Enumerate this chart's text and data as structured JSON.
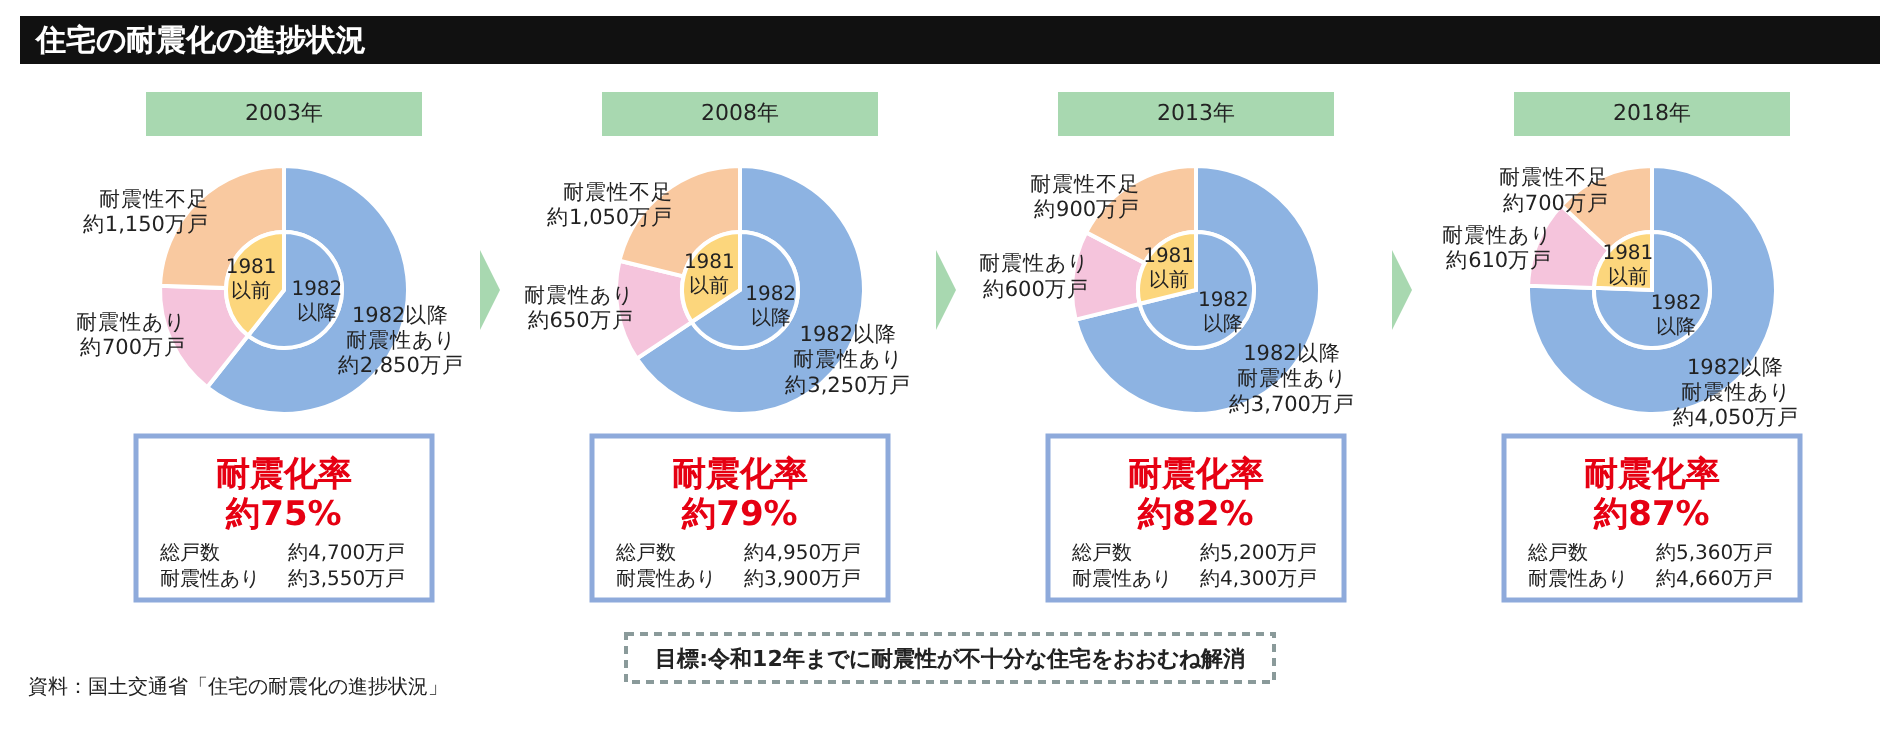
{
  "chart_data": [
    {
      "type": "other",
      "title": "住宅の耐震化の進捗状況",
      "annotations": [
        "資料：国土交通省「住宅の耐震化の進捗状況」",
        "目標:令和12年までに耐震性が不十分な住宅をおおむね解消"
      ]
    },
    {
      "type": "donut",
      "title": "2003年",
      "categories": [
        "1982以降耐震性あり",
        "耐震性あり",
        "耐震性不足"
      ],
      "values": [
        2850,
        700,
        1150
      ],
      "value_labels": [
        "約2,850万戸",
        "約700万戸",
        "約1,150万戸"
      ],
      "colors": [
        "#8db3e2",
        "#f5c4dc",
        "#f9c9a0"
      ],
      "annotations": [
        "耐震化率",
        "約75%",
        "総戸数",
        "約4,700万戸",
        "耐震性あり",
        "約3,550万戸"
      ]
    },
    {
      "type": "pie",
      "categories": [
        "1982以降",
        "1981以前"
      ],
      "values": [
        60.6,
        39.4
      ],
      "colors": [
        "#8db3e2",
        "#fcd67c"
      ]
    },
    {
      "type": "donut",
      "title": "2008年",
      "categories": [
        "1982以降耐震性あり",
        "耐震性あり",
        "耐震性不足"
      ],
      "values": [
        3250,
        650,
        1050
      ],
      "value_labels": [
        "約3,250万戸",
        "約650万戸",
        "約1,050万戸"
      ],
      "colors": [
        "#8db3e2",
        "#f5c4dc",
        "#f9c9a0"
      ],
      "annotations": [
        "耐震化率",
        "約79%",
        "総戸数",
        "約4,950万戸",
        "耐震性あり",
        "約3,900万戸"
      ]
    },
    {
      "type": "pie",
      "categories": [
        "1982以降",
        "1981以前"
      ],
      "values": [
        65.7,
        34.3
      ],
      "colors": [
        "#8db3e2",
        "#fcd67c"
      ]
    },
    {
      "type": "donut",
      "title": "2013年",
      "categories": [
        "1982以降耐震性あり",
        "耐震性あり",
        "耐震性不足"
      ],
      "values": [
        3700,
        600,
        900
      ],
      "value_labels": [
        "約3,700万戸",
        "約600万戸",
        "約900万戸"
      ],
      "colors": [
        "#8db3e2",
        "#f5c4dc",
        "#f9c9a0"
      ],
      "annotations": [
        "耐震化率",
        "約82%",
        "総戸数",
        "約5,200万戸",
        "耐震性あり",
        "約4,300万戸"
      ]
    },
    {
      "type": "pie",
      "categories": [
        "1982以降",
        "1981以前"
      ],
      "values": [
        71.2,
        28.8
      ],
      "colors": [
        "#8db3e2",
        "#fcd67c"
      ]
    },
    {
      "type": "donut",
      "title": "2018年",
      "categories": [
        "1982以降耐震性あり",
        "耐震性あり",
        "耐震性不足"
      ],
      "values": [
        4050,
        610,
        700
      ],
      "value_labels": [
        "約4,050万戸",
        "約610万戸",
        "約700万戸"
      ],
      "colors": [
        "#8db3e2",
        "#f5c4dc",
        "#f9c9a0"
      ],
      "annotations": [
        "耐震化率",
        "約87%",
        "総戸数",
        "約5,360万戸",
        "耐震性あり",
        "約4,660万戸"
      ]
    },
    {
      "type": "pie",
      "categories": [
        "1982以降",
        "1981以前"
      ],
      "values": [
        75.6,
        24.4
      ],
      "colors": [
        "#8db3e2",
        "#fcd67c"
      ]
    }
  ]
}
